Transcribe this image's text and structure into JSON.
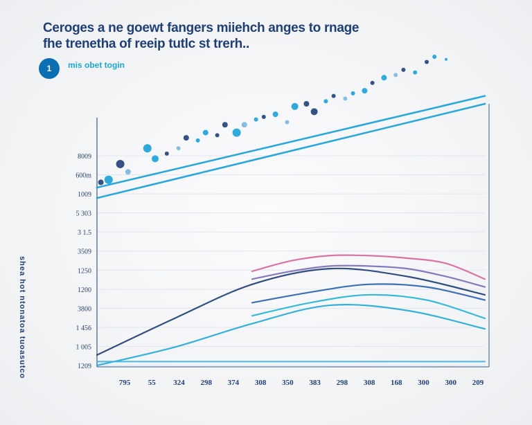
{
  "header": {
    "title": "Ceroges a ne goewt fangers miiehch anges to rnage",
    "subtitle": "fhe trenetha of reeip tutlc st trerh.."
  },
  "legend": {
    "badge": "1",
    "label": "mis obet togin"
  },
  "chart_data": {
    "type": "line",
    "ylabel": "shea hot ntonatoa tuoasutco",
    "ytick_labels": [
      "8009",
      "600m",
      "1009",
      "5 303",
      "3 1.5",
      "3509",
      "1250",
      "1200",
      "3800",
      "1 456",
      "1 005",
      "1209"
    ],
    "xtick_labels": [
      "795",
      "55",
      "324",
      "298",
      "374",
      "308",
      "350",
      "383",
      "298",
      "308",
      "168",
      "300",
      "300",
      "209"
    ],
    "x_range": [
      0,
      100
    ],
    "y_range": [
      0,
      100
    ],
    "series": [
      {
        "name": "trend-upper",
        "color": "#1aa0d8",
        "x": [
          0,
          100
        ],
        "y": [
          68,
          103
        ]
      },
      {
        "name": "trend-lower",
        "color": "#1aa0d8",
        "x": [
          0,
          100
        ],
        "y": [
          64,
          100
        ]
      },
      {
        "name": "navy-curve",
        "color": "#1f3f75",
        "x": [
          0,
          20,
          40,
          60,
          80,
          100
        ],
        "y": [
          4,
          18,
          31,
          37,
          34,
          27
        ]
      },
      {
        "name": "cyan-arc",
        "color": "#24a9d9",
        "x": [
          0,
          20,
          40,
          60,
          80,
          100
        ],
        "y": [
          0,
          7,
          16,
          23,
          21,
          14
        ]
      },
      {
        "name": "pink-arc",
        "color": "#d6679d",
        "x": [
          40,
          50,
          60,
          70,
          80,
          90,
          100
        ],
        "y": [
          36,
          40,
          42,
          42,
          41,
          39,
          33
        ]
      },
      {
        "name": "purple-arc",
        "color": "#7a6fb8",
        "x": [
          40,
          50,
          60,
          70,
          80,
          90,
          100
        ],
        "y": [
          33,
          36,
          38,
          38,
          37,
          34,
          30
        ]
      },
      {
        "name": "blue-arc",
        "color": "#2d64b0",
        "x": [
          40,
          55,
          70,
          85,
          100
        ],
        "y": [
          24,
          28,
          31,
          30,
          25
        ]
      },
      {
        "name": "teal-arc",
        "color": "#27b3d6",
        "x": [
          40,
          55,
          70,
          85,
          100
        ],
        "y": [
          19,
          24,
          27,
          25,
          18
        ]
      },
      {
        "name": "baseline",
        "color": "#3bb3e0",
        "x": [
          0,
          100
        ],
        "y": [
          1.5,
          1.5
        ]
      }
    ],
    "scatter": [
      {
        "x": 1,
        "y": 70,
        "r": 4,
        "c": "#1f3f75"
      },
      {
        "x": 3,
        "y": 71,
        "r": 6,
        "c": "#1aa0d8"
      },
      {
        "x": 6,
        "y": 77,
        "r": 6,
        "c": "#1f3f75"
      },
      {
        "x": 8,
        "y": 74,
        "r": 4,
        "c": "#7ab6de"
      },
      {
        "x": 13,
        "y": 83,
        "r": 6,
        "c": "#1aa0d8"
      },
      {
        "x": 15,
        "y": 79,
        "r": 5,
        "c": "#1aa0d8"
      },
      {
        "x": 18,
        "y": 81,
        "r": 3,
        "c": "#1f3f75"
      },
      {
        "x": 21,
        "y": 83,
        "r": 3,
        "c": "#7ab6de"
      },
      {
        "x": 23,
        "y": 87,
        "r": 4,
        "c": "#1f3f75"
      },
      {
        "x": 26,
        "y": 86,
        "r": 3,
        "c": "#1aa0d8"
      },
      {
        "x": 28,
        "y": 89,
        "r": 4,
        "c": "#1aa0d8"
      },
      {
        "x": 31,
        "y": 88,
        "r": 3,
        "c": "#1f3f75"
      },
      {
        "x": 33,
        "y": 92,
        "r": 4,
        "c": "#1f3f75"
      },
      {
        "x": 36,
        "y": 89,
        "r": 6,
        "c": "#1aa0d8"
      },
      {
        "x": 38,
        "y": 92,
        "r": 4,
        "c": "#7ab6de"
      },
      {
        "x": 41,
        "y": 94,
        "r": 3,
        "c": "#1aa0d8"
      },
      {
        "x": 43,
        "y": 95,
        "r": 3,
        "c": "#1f3f75"
      },
      {
        "x": 46,
        "y": 96,
        "r": 4,
        "c": "#1aa0d8"
      },
      {
        "x": 49,
        "y": 93,
        "r": 3,
        "c": "#7ab6de"
      },
      {
        "x": 51,
        "y": 99,
        "r": 5,
        "c": "#1aa0d8"
      },
      {
        "x": 54,
        "y": 100,
        "r": 4,
        "c": "#1f3f75"
      },
      {
        "x": 56,
        "y": 97,
        "r": 5,
        "c": "#1f3f75"
      },
      {
        "x": 59,
        "y": 101,
        "r": 3,
        "c": "#1aa0d8"
      },
      {
        "x": 61,
        "y": 103,
        "r": 3,
        "c": "#1f3f75"
      },
      {
        "x": 64,
        "y": 102,
        "r": 3,
        "c": "#7ab6de"
      },
      {
        "x": 66,
        "y": 104,
        "r": 3,
        "c": "#1aa0d8"
      },
      {
        "x": 69,
        "y": 105,
        "r": 4,
        "c": "#1aa0d8"
      },
      {
        "x": 71,
        "y": 108,
        "r": 3,
        "c": "#1f3f75"
      },
      {
        "x": 74,
        "y": 110,
        "r": 4,
        "c": "#1aa0d8"
      },
      {
        "x": 77,
        "y": 111,
        "r": 3,
        "c": "#7ab6de"
      },
      {
        "x": 79,
        "y": 113,
        "r": 3,
        "c": "#1f3f75"
      },
      {
        "x": 82,
        "y": 112,
        "r": 3,
        "c": "#1aa0d8"
      },
      {
        "x": 85,
        "y": 116,
        "r": 3,
        "c": "#1f3f75"
      },
      {
        "x": 87,
        "y": 118,
        "r": 3,
        "c": "#1aa0d8"
      },
      {
        "x": 90,
        "y": 117,
        "r": 2,
        "c": "#1aa0d8"
      }
    ]
  }
}
